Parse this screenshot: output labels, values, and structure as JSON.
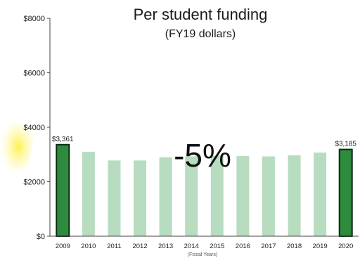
{
  "chart_data": {
    "type": "bar",
    "title": "Per student funding",
    "subtitle": "(FY19 dollars)",
    "xlabel": "(Fiscal Years)",
    "ylabel": "",
    "ylim": [
      0,
      8000
    ],
    "yticks": [
      0,
      2000,
      4000,
      6000,
      8000
    ],
    "ytick_labels": [
      "$0",
      "$2000",
      "$4000",
      "$6000",
      "$8000"
    ],
    "grid": false,
    "categories": [
      "2009",
      "2010",
      "2011",
      "2012",
      "2013",
      "2014",
      "2015",
      "2016",
      "2017",
      "2018",
      "2019",
      "2020"
    ],
    "values": [
      3361,
      3100,
      2780,
      2780,
      2900,
      2930,
      2960,
      2940,
      2930,
      2970,
      3070,
      3185
    ],
    "highlight_index": [
      0,
      11
    ],
    "data_labels": [
      {
        "index": 0,
        "text": "$3,361"
      },
      {
        "index": 11,
        "text": "$3,185"
      }
    ],
    "annotation": "-5%",
    "colors": {
      "bar": "#b7dcc0",
      "highlight_bar": "#2e8b3e",
      "highlight_stroke": "#0b2a12",
      "axis": "#444444",
      "accent_shape": "#ffee33"
    }
  }
}
